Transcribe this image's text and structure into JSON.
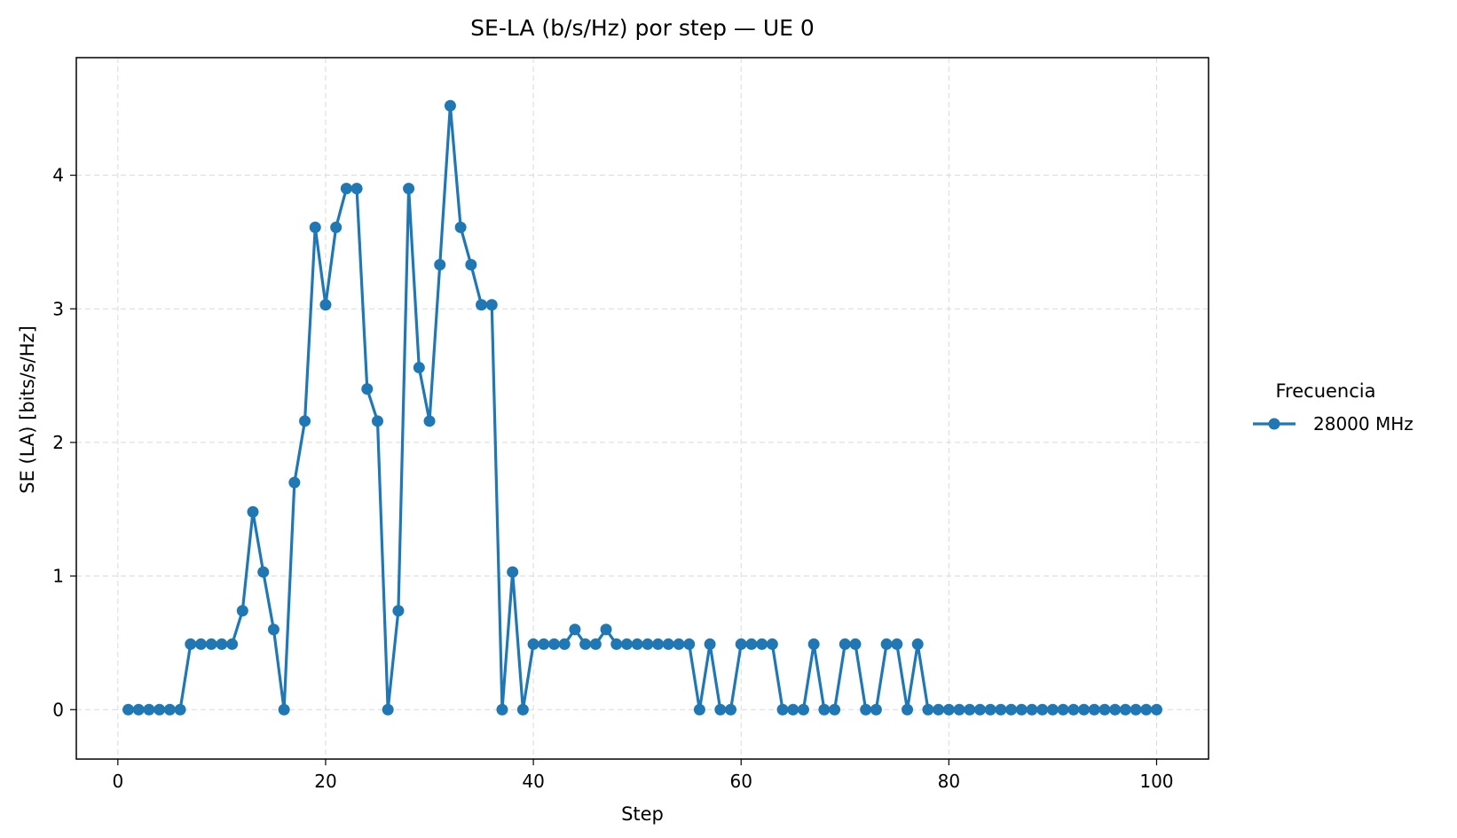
{
  "chart_data": {
    "type": "line",
    "title": "SE-LA (b/s/Hz) por step — UE 0",
    "xlabel": "Step",
    "ylabel": "SE (LA) [bits/s/Hz]",
    "xlim": [
      -4,
      105
    ],
    "ylim": [
      -0.37,
      4.88
    ],
    "xticks": [
      0,
      20,
      40,
      60,
      80,
      100
    ],
    "yticks": [
      0,
      1,
      2,
      3,
      4
    ],
    "grid": true,
    "legend": {
      "title": "Frecuencia",
      "placement": "right-outside"
    },
    "colors": {
      "series": "#1f77b4"
    },
    "series": [
      {
        "name": "28000 MHz",
        "x": [
          1,
          2,
          3,
          4,
          5,
          6,
          7,
          8,
          9,
          10,
          11,
          12,
          13,
          14,
          15,
          16,
          17,
          18,
          19,
          20,
          21,
          22,
          23,
          24,
          25,
          26,
          27,
          28,
          29,
          30,
          31,
          32,
          33,
          34,
          35,
          36,
          37,
          38,
          39,
          40,
          41,
          42,
          43,
          44,
          45,
          46,
          47,
          48,
          49,
          50,
          51,
          52,
          53,
          54,
          55,
          56,
          57,
          58,
          59,
          60,
          61,
          62,
          63,
          64,
          65,
          66,
          67,
          68,
          69,
          70,
          71,
          72,
          73,
          74,
          75,
          76,
          77,
          78,
          79,
          80,
          81,
          82,
          83,
          84,
          85,
          86,
          87,
          88,
          89,
          90,
          91,
          92,
          93,
          94,
          95,
          96,
          97,
          98,
          99,
          100
        ],
        "values": [
          0,
          0,
          0,
          0,
          0,
          0,
          0.49,
          0.49,
          0.49,
          0.49,
          0.49,
          0.74,
          1.48,
          1.03,
          0.6,
          0,
          1.7,
          2.16,
          3.61,
          3.03,
          3.61,
          3.9,
          3.9,
          2.4,
          2.16,
          0,
          0.74,
          3.9,
          2.56,
          2.16,
          3.33,
          4.52,
          3.61,
          3.33,
          3.03,
          3.03,
          0,
          1.03,
          0,
          0.49,
          0.49,
          0.49,
          0.49,
          0.6,
          0.49,
          0.49,
          0.6,
          0.49,
          0.49,
          0.49,
          0.49,
          0.49,
          0.49,
          0.49,
          0.49,
          0,
          0.49,
          0,
          0,
          0.49,
          0.49,
          0.49,
          0.49,
          0,
          0,
          0,
          0.49,
          0,
          0,
          0.49,
          0.49,
          0,
          0,
          0.49,
          0.49,
          0,
          0.49,
          0,
          0,
          0,
          0,
          0,
          0,
          0,
          0,
          0,
          0,
          0,
          0,
          0,
          0,
          0,
          0,
          0,
          0,
          0,
          0,
          0,
          0,
          0
        ]
      }
    ]
  }
}
